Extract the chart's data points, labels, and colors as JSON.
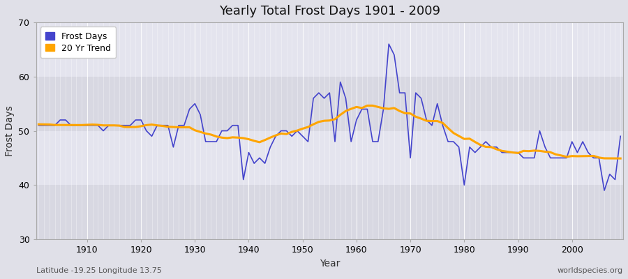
{
  "title": "Yearly Total Frost Days 1901 - 2009",
  "xlabel": "Year",
  "ylabel": "Frost Days",
  "subtitle": "Latitude -19.25 Longitude 13.75",
  "watermark": "worldspecies.org",
  "line_color": "#4444cc",
  "trend_color": "#FFA500",
  "background_color": "#e0e0e8",
  "plot_bg_light": "#e8e8f0",
  "plot_bg_dark": "#d8d8e0",
  "ylim": [
    30,
    70
  ],
  "xlim": [
    1901,
    2009
  ],
  "yticks": [
    30,
    40,
    50,
    60,
    70
  ],
  "frost_days": [
    51,
    51,
    51,
    51,
    52,
    52,
    51,
    51,
    51,
    51,
    51,
    51,
    50,
    51,
    51,
    51,
    51,
    51,
    52,
    52,
    50,
    49,
    51,
    51,
    51,
    47,
    51,
    51,
    54,
    55,
    53,
    48,
    48,
    48,
    50,
    50,
    51,
    51,
    41,
    46,
    44,
    45,
    44,
    47,
    49,
    50,
    50,
    49,
    50,
    49,
    48,
    56,
    57,
    56,
    57,
    48,
    59,
    56,
    48,
    52,
    54,
    54,
    48,
    48,
    54,
    66,
    64,
    57,
    57,
    45,
    57,
    56,
    52,
    51,
    55,
    51,
    48,
    48,
    47,
    40,
    47,
    46,
    47,
    48,
    47,
    47,
    46,
    46,
    46,
    46,
    45,
    45,
    45,
    50,
    47,
    45,
    45,
    45,
    45,
    48,
    46,
    48,
    46,
    45,
    45,
    39,
    42,
    41,
    49
  ],
  "years": [
    1901,
    1902,
    1903,
    1904,
    1905,
    1906,
    1907,
    1908,
    1909,
    1910,
    1911,
    1912,
    1913,
    1914,
    1915,
    1916,
    1917,
    1918,
    1919,
    1920,
    1921,
    1922,
    1923,
    1924,
    1925,
    1926,
    1927,
    1928,
    1929,
    1930,
    1931,
    1932,
    1933,
    1934,
    1935,
    1936,
    1937,
    1938,
    1939,
    1940,
    1941,
    1942,
    1943,
    1944,
    1945,
    1946,
    1947,
    1948,
    1949,
    1950,
    1951,
    1952,
    1953,
    1954,
    1955,
    1956,
    1957,
    1958,
    1959,
    1960,
    1961,
    1962,
    1963,
    1964,
    1965,
    1966,
    1967,
    1968,
    1969,
    1970,
    1971,
    1972,
    1973,
    1974,
    1975,
    1976,
    1977,
    1978,
    1979,
    1980,
    1981,
    1982,
    1983,
    1984,
    1985,
    1986,
    1987,
    1988,
    1989,
    1990,
    1991,
    1992,
    1993,
    1994,
    1995,
    1996,
    1997,
    1998,
    1999,
    2000,
    2001,
    2002,
    2003,
    2004,
    2005,
    2006,
    2007,
    2008,
    2009
  ]
}
